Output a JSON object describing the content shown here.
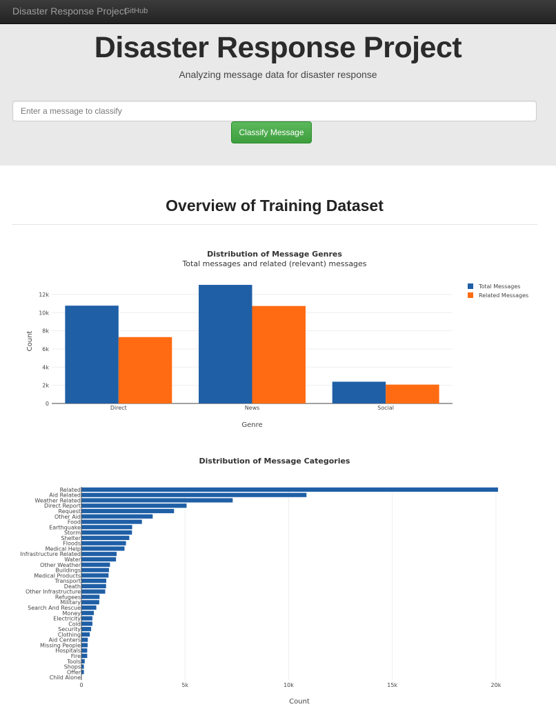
{
  "navbar": {
    "brand": "Disaster Response Project",
    "link": "GitHub"
  },
  "hero": {
    "title": "Disaster Response Project",
    "subtitle": "Analyzing message data for disaster response",
    "input_placeholder": "Enter a message to classify",
    "button_label": "Classify Message"
  },
  "section": {
    "title": "Overview of Training Dataset"
  },
  "colors": {
    "blue": "#1f5fa6",
    "orange": "#ff6b12"
  },
  "chart_data": [
    {
      "type": "bar",
      "title": "Distribution of Message Genres",
      "subtitle": "Total messages and related (relevant) messages",
      "xlabel": "Genre",
      "ylabel": "Count",
      "categories": [
        "Direct",
        "News",
        "Social"
      ],
      "series": [
        {
          "name": "Total Messages",
          "values": [
            10766,
            13054,
            2396
          ]
        },
        {
          "name": "Related Messages",
          "values": [
            7306,
            10729,
            2077
          ]
        }
      ],
      "yticks": [
        0,
        2000,
        4000,
        6000,
        8000,
        10000,
        12000
      ],
      "ytick_labels": [
        "0",
        "2k",
        "4k",
        "6k",
        "8k",
        "10k",
        "12k"
      ],
      "ylim": [
        0,
        13740
      ],
      "legend": "top-right",
      "grid": true
    },
    {
      "type": "bar",
      "orientation": "horizontal",
      "title": "Distribution of Message Categories",
      "xlabel": "Count",
      "categories": [
        "Related",
        "Aid Related",
        "Weather Related",
        "Direct Report",
        "Request",
        "Other Aid",
        "Food",
        "Earthquake",
        "Storm",
        "Shelter",
        "Floods",
        "Medical Help",
        "Infrastructure Related",
        "Water",
        "Other Weather",
        "Buildings",
        "Medical Products",
        "Transport",
        "Death",
        "Other Infrastructure",
        "Refugees",
        "Military",
        "Search And Rescue",
        "Money",
        "Electricity",
        "Cold",
        "Security",
        "Clothing",
        "Aid Centers",
        "Missing People",
        "Hospitals",
        "Fire",
        "Tools",
        "Shops",
        "Offer",
        "Child Alone"
      ],
      "values": [
        20100,
        10860,
        7300,
        5075,
        4470,
        3440,
        2920,
        2450,
        2440,
        2310,
        2150,
        2080,
        1700,
        1670,
        1380,
        1330,
        1310,
        1200,
        1190,
        1150,
        875,
        860,
        720,
        600,
        530,
        530,
        470,
        405,
        310,
        300,
        280,
        280,
        160,
        120,
        120,
        0
      ],
      "xticks": [
        0,
        5000,
        10000,
        15000,
        20000
      ],
      "xtick_labels": [
        "0",
        "5k",
        "10k",
        "15k",
        "20k"
      ],
      "xlim": [
        0,
        21200
      ],
      "grid": true
    }
  ]
}
